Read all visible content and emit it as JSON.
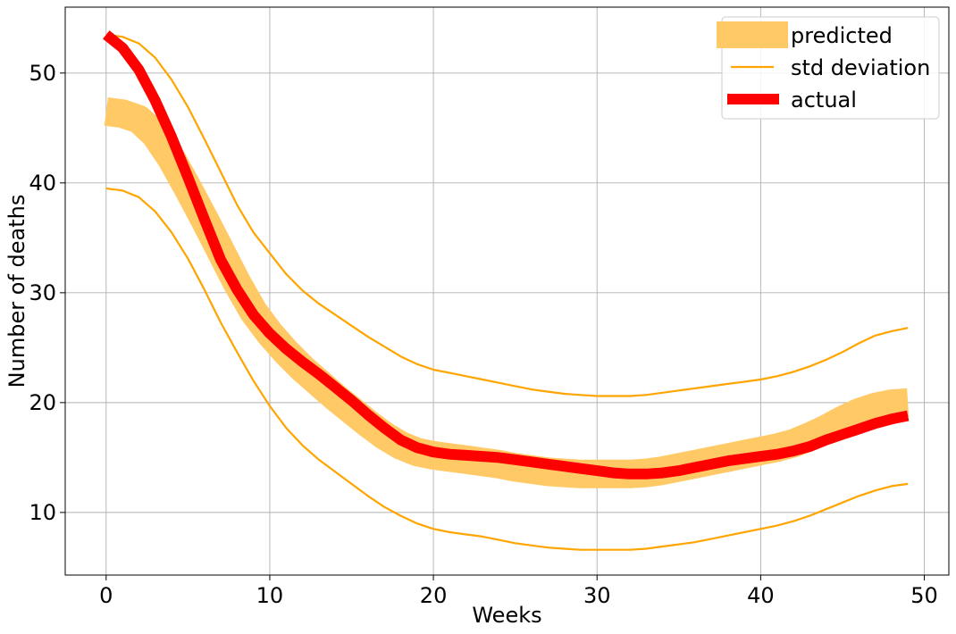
{
  "chart_data": {
    "type": "line",
    "title": "",
    "xlabel": "Weeks",
    "ylabel": "Number of deaths",
    "xlim": [
      -2.5,
      51.5
    ],
    "ylim": [
      4.3,
      56
    ],
    "xticks": [
      0,
      10,
      20,
      30,
      40,
      50
    ],
    "yticks": [
      10,
      20,
      30,
      40,
      50
    ],
    "grid": true,
    "legend_position": "top-right",
    "colors": {
      "predicted": "#ffc966",
      "std": "#ffa500",
      "actual": "#ff0000"
    },
    "x": [
      0,
      1,
      2,
      3,
      4,
      5,
      6,
      7,
      8,
      9,
      10,
      11,
      12,
      13,
      14,
      15,
      16,
      17,
      18,
      19,
      20,
      21,
      22,
      23,
      24,
      25,
      26,
      27,
      28,
      29,
      30,
      31,
      32,
      33,
      34,
      35,
      36,
      37,
      38,
      39,
      40,
      41,
      42,
      43,
      44,
      45,
      46,
      47,
      48,
      49
    ],
    "series": [
      {
        "name": "predicted",
        "values": [
          46.5,
          46.3,
          45.8,
          44.4,
          42.2,
          39.5,
          36.7,
          33.8,
          30.9,
          28.3,
          26.3,
          24.6,
          23.1,
          21.8,
          20.5,
          19.3,
          18.1,
          17.0,
          16.1,
          15.5,
          15.2,
          15.0,
          14.8,
          14.6,
          14.4,
          14.1,
          13.9,
          13.7,
          13.6,
          13.5,
          13.5,
          13.5,
          13.5,
          13.6,
          13.8,
          14.1,
          14.4,
          14.7,
          15.0,
          15.3,
          15.6,
          15.9,
          16.3,
          16.9,
          17.6,
          18.4,
          19.1,
          19.6,
          19.9,
          20.0
        ]
      },
      {
        "name": "std deviation",
        "values": [
          53.5,
          53.3,
          52.7,
          51.4,
          49.4,
          46.9,
          44.0,
          41.0,
          38.0,
          35.5,
          33.6,
          31.7,
          30.2,
          29.0,
          28.0,
          27.0,
          26.0,
          25.1,
          24.2,
          23.5,
          23.0,
          22.7,
          22.4,
          22.1,
          21.8,
          21.5,
          21.2,
          21.0,
          20.8,
          20.7,
          20.6,
          20.6,
          20.6,
          20.7,
          20.9,
          21.1,
          21.3,
          21.5,
          21.7,
          21.9,
          22.1,
          22.4,
          22.8,
          23.3,
          23.9,
          24.6,
          25.4,
          26.1,
          26.5,
          26.8
        ]
      },
      {
        "name": "std deviation lower",
        "values": [
          39.5,
          39.3,
          38.7,
          37.4,
          35.5,
          33.1,
          30.3,
          27.3,
          24.6,
          22.0,
          19.7,
          17.7,
          16.1,
          14.8,
          13.7,
          12.6,
          11.5,
          10.5,
          9.7,
          9.0,
          8.5,
          8.2,
          8.0,
          7.8,
          7.5,
          7.2,
          7.0,
          6.8,
          6.7,
          6.6,
          6.6,
          6.6,
          6.6,
          6.7,
          6.9,
          7.1,
          7.3,
          7.6,
          7.9,
          8.2,
          8.5,
          8.8,
          9.2,
          9.7,
          10.3,
          10.9,
          11.5,
          12.0,
          12.4,
          12.6
        ]
      },
      {
        "name": "actual",
        "values": [
          53.5,
          52.3,
          50.3,
          47.5,
          44.2,
          40.5,
          36.7,
          33.0,
          30.3,
          28.0,
          26.3,
          24.9,
          23.7,
          22.6,
          21.4,
          20.2,
          18.9,
          17.7,
          16.6,
          15.9,
          15.5,
          15.3,
          15.2,
          15.1,
          15.0,
          14.8,
          14.6,
          14.4,
          14.2,
          14.0,
          13.8,
          13.6,
          13.5,
          13.5,
          13.6,
          13.8,
          14.1,
          14.4,
          14.7,
          14.9,
          15.1,
          15.3,
          15.6,
          16.0,
          16.6,
          17.1,
          17.6,
          18.1,
          18.5,
          18.8
        ]
      }
    ],
    "legend": [
      "predicted",
      "std deviation",
      "actual"
    ]
  }
}
